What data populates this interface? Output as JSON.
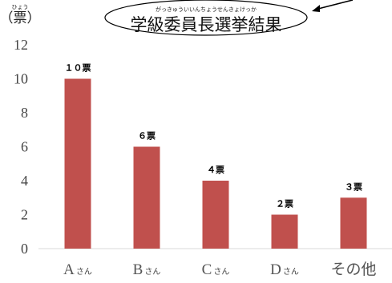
{
  "chart_data": {
    "type": "bar",
    "title": "学級委員長選挙結果",
    "title_ruby": "がっきゅういいんちょうせんきょけっか",
    "ylabel": "（票）",
    "ylabel_ruby": "ひょう",
    "ylim": [
      0,
      12
    ],
    "yticks": [
      "0",
      "2",
      "4",
      "6",
      "8",
      "10",
      "12"
    ],
    "categories": [
      {
        "main": "A",
        "sub": "さん"
      },
      {
        "main": "B",
        "sub": "さん"
      },
      {
        "main": "C",
        "sub": "さん"
      },
      {
        "main": "D",
        "sub": "さん"
      },
      {
        "main": "その他",
        "sub": ""
      }
    ],
    "values": [
      10,
      6,
      4,
      2,
      3
    ],
    "data_labels": [
      "１０票",
      "６票",
      "４票",
      "２票",
      "３票"
    ],
    "bar_color": "#c0504d",
    "grid": false
  }
}
